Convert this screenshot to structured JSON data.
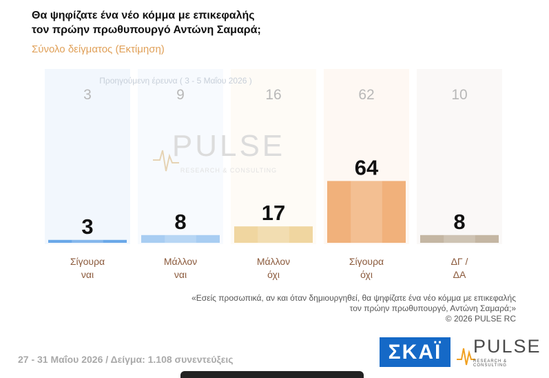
{
  "header": {
    "title_line1": "Θα ψηφίζατε ένα νέο κόμμα με επικεφαλής",
    "title_line2": "τον πρώην πρωθυπουργό Αντώνη Σαμαρά;",
    "subtitle": "Σύνολο δείγματος (Εκτίμηση)"
  },
  "chart_data": {
    "type": "bar",
    "previous_label": "Προηγούμενη έρευνα ( 3 - 5 Μαΐου 2026 )",
    "categories": [
      {
        "line1": "Σίγουρα",
        "line2": "ναι"
      },
      {
        "line1": "Μάλλον",
        "line2": "ναι"
      },
      {
        "line1": "Μάλλον",
        "line2": "όχι"
      },
      {
        "line1": "Σίγουρα",
        "line2": "όχι"
      },
      {
        "line1": "ΔΓ /",
        "line2": "ΔΑ"
      }
    ],
    "series": [
      {
        "values": [
          3,
          8,
          17,
          64,
          8
        ]
      },
      {
        "values": [
          3,
          9,
          16,
          62,
          10
        ]
      }
    ],
    "bar_colors": [
      "#6aa8e8",
      "#a8cdf2",
      "#f0d6a0",
      "#f1b17b",
      "#c4b6a3"
    ],
    "ylim": [
      0,
      100
    ]
  },
  "watermark": {
    "main": "PULSE",
    "sub": "RESEARCH & CONSULTING"
  },
  "note": {
    "line1": "«Εσείς προσωπικά, αν και όταν δημιουργηθεί, θα ψηφίζατε ένα νέο κόμμα με επικεφαλής",
    "line2": "τον πρώην πρωθυπουργό, Αντώνη Σαμαρά;»",
    "line3": "©  2026  PULSE RC"
  },
  "footer": "27 - 31  Μαΐου 2026  /  Δείγμα:  1.108 συνεντεύξεις",
  "logos": {
    "skai": "ΣΚΑΪ",
    "pulse": "PULSE",
    "pulse_sub": "RESEARCH & CONSULTING"
  }
}
